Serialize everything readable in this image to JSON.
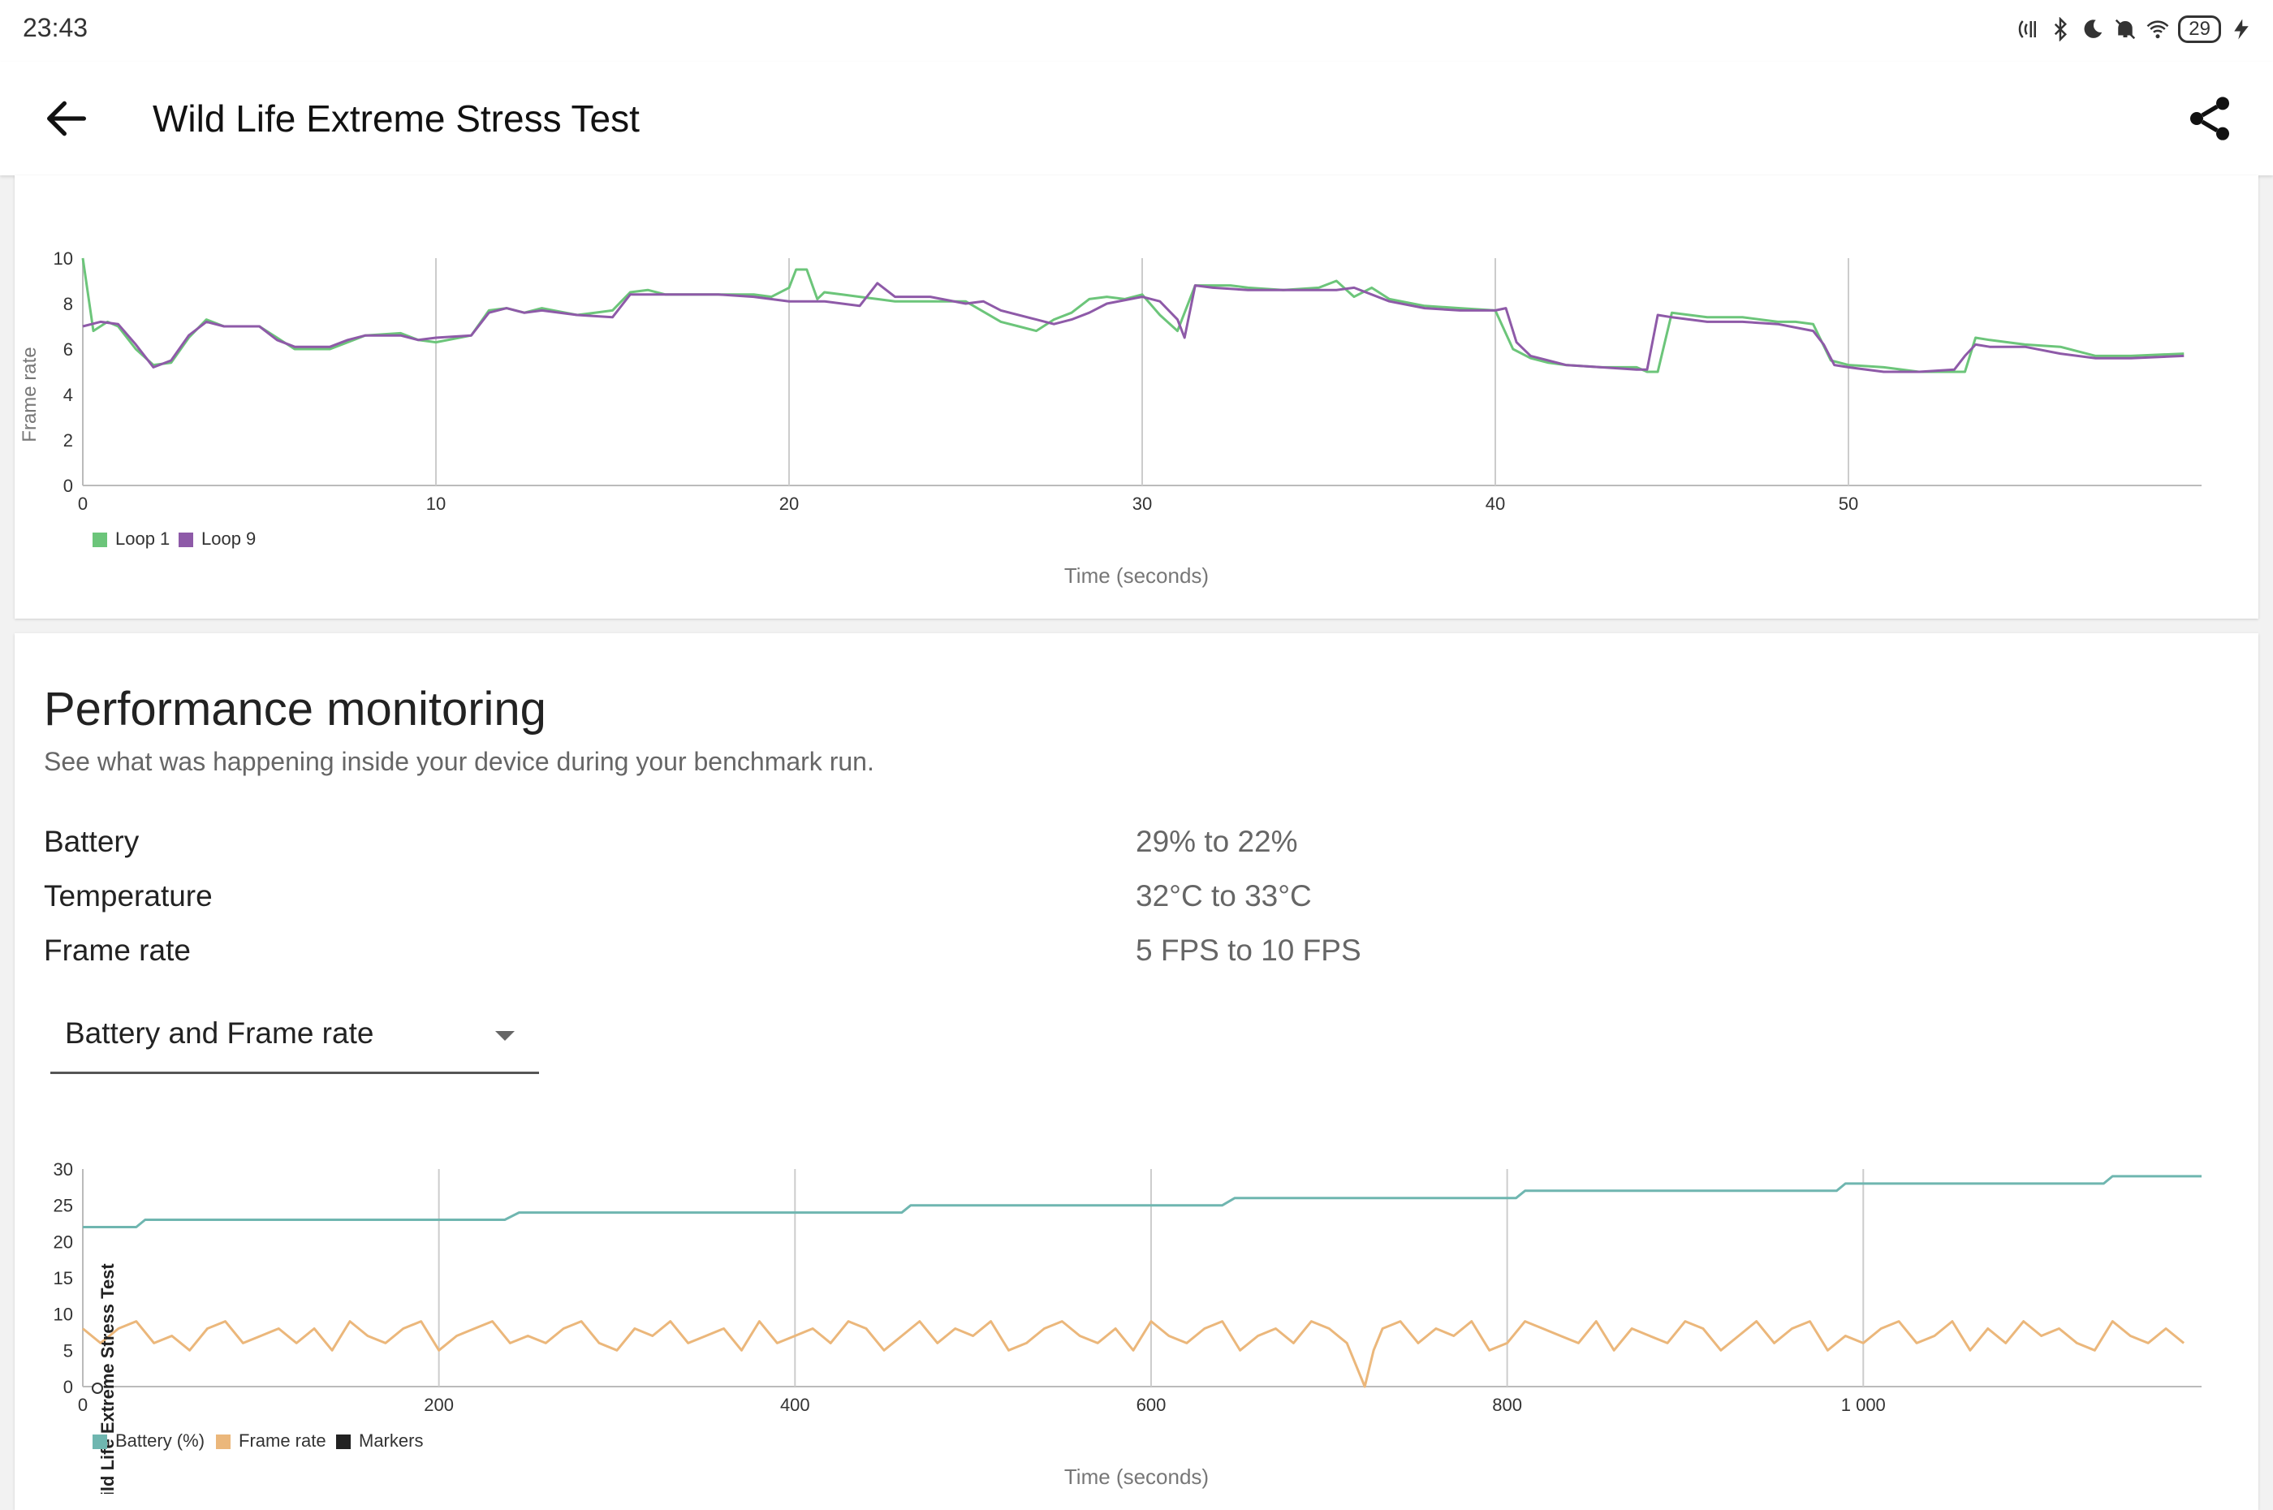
{
  "status_bar": {
    "time": "23:43",
    "battery_level": "29",
    "icons": [
      "nfc-icon",
      "bluetooth-icon",
      "moon-icon",
      "bell-off-icon",
      "wifi-icon",
      "battery-icon",
      "charging-icon"
    ]
  },
  "app_bar": {
    "title": "Wild Life Extreme Stress Test",
    "back_icon": "arrow-left-icon",
    "share_icon": "share-icon"
  },
  "frame_rate_chart": {
    "ylabel": "Frame rate",
    "xlabel": "Time (seconds)",
    "y_ticks": [
      "0",
      "2",
      "4",
      "6",
      "8",
      "10"
    ],
    "x_ticks": [
      "0",
      "10",
      "20",
      "30",
      "40",
      "50"
    ]
  },
  "performance": {
    "title": "Performance monitoring",
    "subtitle": "See what was happening inside your device during your benchmark run.",
    "stats": [
      {
        "label": "Battery",
        "value": "29% to 22%"
      },
      {
        "label": "Temperature",
        "value": "32°C to 33°C"
      },
      {
        "label": "Frame rate",
        "value": "5 FPS to 10 FPS"
      }
    ],
    "select": {
      "value": "Battery and Frame rate"
    }
  },
  "battery_chart": {
    "ylabel": "Wild Life Extreme Stress Test",
    "xlabel": "Time (seconds)",
    "y_ticks": [
      "0",
      "5",
      "10",
      "15",
      "20",
      "25",
      "30"
    ],
    "x_ticks": [
      "0",
      "200",
      "400",
      "600",
      "800",
      "1 000"
    ]
  },
  "colors": {
    "loop1": "#6cc57a",
    "loop9": "#8e5aa8",
    "battery": "#6fb6b0",
    "framerate": "#ebb77b",
    "markers": "#222222"
  },
  "chart_data": [
    {
      "type": "line",
      "xlabel": "Time (seconds)",
      "ylabel": "Frame rate",
      "xlim": [
        0,
        60
      ],
      "ylim": [
        0,
        10
      ],
      "legend": "bottom-left",
      "grid": "vertical",
      "series": [
        {
          "name": "Loop 1",
          "x": [
            0,
            0.3,
            0.7,
            1,
            1.5,
            2,
            2.5,
            3,
            3.5,
            4,
            5,
            5.5,
            6,
            7,
            7.5,
            8,
            9,
            9.5,
            10,
            11,
            11.5,
            12,
            12.5,
            13,
            14,
            14.5,
            15,
            15.5,
            16,
            16.5,
            17,
            18,
            19,
            19.5,
            20,
            20.2,
            20.5,
            20.8,
            21,
            21.5,
            22,
            22.5,
            23,
            24,
            25,
            26,
            26.5,
            27,
            27.5,
            28,
            28.5,
            29,
            29.5,
            30,
            30.5,
            31,
            31.5,
            32,
            32.5,
            33,
            34,
            35,
            35.5,
            36,
            36.5,
            37,
            38,
            39,
            40,
            40.5,
            41,
            41.5,
            42,
            43,
            44,
            44.3,
            44.6,
            45,
            46,
            47,
            48,
            48.5,
            49,
            49.5,
            50,
            51,
            52,
            53,
            53.3,
            53.6,
            54,
            55,
            56,
            57,
            58,
            59.5
          ],
          "y": [
            10,
            6.8,
            7.2,
            7,
            6,
            5.3,
            5.4,
            6.5,
            7.3,
            7,
            7,
            6.5,
            6,
            6,
            6.3,
            6.6,
            6.7,
            6.4,
            6.3,
            6.6,
            7.7,
            7.8,
            7.6,
            7.8,
            7.5,
            7.6,
            7.7,
            8.5,
            8.6,
            8.4,
            8.4,
            8.4,
            8.4,
            8.3,
            8.7,
            9.5,
            9.5,
            8.2,
            8.5,
            8.4,
            8.3,
            8.2,
            8.1,
            8.1,
            8.1,
            7.2,
            7,
            6.8,
            7.3,
            7.6,
            8.2,
            8.3,
            8.2,
            8.4,
            7.5,
            6.8,
            8.8,
            8.8,
            8.8,
            8.7,
            8.6,
            8.7,
            9,
            8.3,
            8.7,
            8.2,
            7.9,
            7.8,
            7.7,
            6,
            5.6,
            5.4,
            5.3,
            5.2,
            5.2,
            5,
            5,
            7.6,
            7.4,
            7.4,
            7.2,
            7.2,
            7.1,
            5.5,
            5.3,
            5.2,
            5,
            5,
            5,
            6.5,
            6.4,
            6.2,
            6.1,
            5.7,
            5.7,
            5.8
          ]
        },
        {
          "name": "Loop 9",
          "x": [
            0,
            0.5,
            1,
            1.5,
            2,
            2.5,
            3,
            3.5,
            4,
            5,
            5.5,
            6,
            7,
            7.5,
            8,
            9,
            9.5,
            10,
            11,
            11.5,
            12,
            12.5,
            13,
            14,
            15,
            15.5,
            16,
            17,
            18,
            19,
            20,
            21,
            22,
            22.5,
            23,
            24,
            25,
            25.5,
            26,
            27,
            27.5,
            28,
            28.5,
            29,
            30,
            30.5,
            31,
            31.2,
            31.5,
            32,
            33,
            34,
            35,
            35.5,
            36,
            37,
            38,
            39,
            40,
            40.3,
            40.6,
            41,
            42,
            43,
            44,
            44.3,
            44.6,
            45,
            46,
            47,
            48,
            49,
            49.3,
            49.6,
            50,
            51,
            52,
            53,
            53.3,
            53.6,
            54,
            55,
            56,
            57,
            58,
            59.5
          ],
          "y": [
            7,
            7.2,
            7.1,
            6.2,
            5.2,
            5.5,
            6.6,
            7.2,
            7,
            7,
            6.4,
            6.1,
            6.1,
            6.4,
            6.6,
            6.6,
            6.4,
            6.5,
            6.6,
            7.6,
            7.8,
            7.6,
            7.7,
            7.5,
            7.4,
            8.4,
            8.4,
            8.4,
            8.4,
            8.3,
            8.1,
            8.1,
            7.9,
            8.9,
            8.3,
            8.3,
            8,
            8.1,
            7.7,
            7.3,
            7.1,
            7.3,
            7.6,
            8,
            8.3,
            8.1,
            7.3,
            6.5,
            8.8,
            8.7,
            8.6,
            8.6,
            8.6,
            8.6,
            8.7,
            8.1,
            7.8,
            7.7,
            7.7,
            7.8,
            6.3,
            5.7,
            5.3,
            5.2,
            5.1,
            5.1,
            7.5,
            7.4,
            7.2,
            7.2,
            7.1,
            6.8,
            6.2,
            5.3,
            5.2,
            5,
            5,
            5.1,
            5.7,
            6.2,
            6.1,
            6.1,
            5.8,
            5.6,
            5.6,
            5.7
          ]
        }
      ]
    },
    {
      "type": "line",
      "xlabel": "Time (seconds)",
      "ylabel": "Wild Life Extreme Stress Test",
      "xlim": [
        0,
        1190
      ],
      "ylim": [
        0,
        30
      ],
      "legend": "bottom-left",
      "grid": "vertical",
      "series": [
        {
          "name": "Battery (%)",
          "x": [
            0,
            30,
            35,
            237,
            245,
            460,
            465,
            640,
            647,
            805,
            810,
            985,
            990,
            1135,
            1140,
            1190
          ],
          "y": [
            22,
            22,
            23,
            23,
            24,
            24,
            25,
            25,
            26,
            26,
            27,
            27,
            28,
            28,
            29,
            29
          ]
        },
        {
          "name": "Frame rate",
          "x": [
            0,
            10,
            20,
            30,
            40,
            50,
            60,
            70,
            80,
            90,
            100,
            110,
            120,
            130,
            140,
            150,
            160,
            170,
            180,
            190,
            200,
            210,
            220,
            230,
            240,
            250,
            260,
            270,
            280,
            290,
            300,
            310,
            320,
            330,
            340,
            350,
            360,
            370,
            380,
            390,
            400,
            410,
            420,
            430,
            440,
            450,
            460,
            470,
            480,
            490,
            500,
            510,
            520,
            530,
            540,
            550,
            560,
            570,
            580,
            590,
            600,
            610,
            620,
            630,
            640,
            650,
            660,
            670,
            680,
            690,
            700,
            710,
            715,
            720,
            725,
            730,
            740,
            750,
            760,
            770,
            780,
            790,
            800,
            810,
            820,
            830,
            840,
            850,
            860,
            870,
            880,
            890,
            900,
            910,
            920,
            930,
            940,
            950,
            960,
            970,
            980,
            990,
            1000,
            1010,
            1020,
            1030,
            1040,
            1050,
            1060,
            1070,
            1080,
            1090,
            1100,
            1110,
            1120,
            1130,
            1140,
            1150,
            1160,
            1170,
            1180
          ],
          "y": [
            8,
            6,
            8,
            9,
            6,
            7,
            5,
            8,
            9,
            6,
            7,
            8,
            6,
            8,
            5,
            9,
            7,
            6,
            8,
            9,
            5,
            7,
            8,
            9,
            6,
            7,
            6,
            8,
            9,
            6,
            5,
            8,
            7,
            9,
            6,
            7,
            8,
            5,
            9,
            6,
            7,
            8,
            6,
            9,
            8,
            5,
            7,
            9,
            6,
            8,
            7,
            9,
            5,
            6,
            8,
            9,
            7,
            6,
            8,
            5,
            9,
            7,
            6,
            8,
            9,
            5,
            7,
            8,
            6,
            9,
            8,
            6,
            3,
            0,
            5,
            8,
            9,
            6,
            8,
            7,
            9,
            5,
            6,
            9,
            8,
            7,
            6,
            9,
            5,
            8,
            7,
            6,
            9,
            8,
            5,
            7,
            9,
            6,
            8,
            9,
            5,
            7,
            6,
            8,
            9,
            6,
            7,
            9,
            5,
            8,
            6,
            9,
            7,
            8,
            6,
            5,
            9,
            7,
            6,
            8,
            6
          ]
        },
        {
          "name": "Markers",
          "x": [],
          "y": []
        }
      ]
    }
  ]
}
